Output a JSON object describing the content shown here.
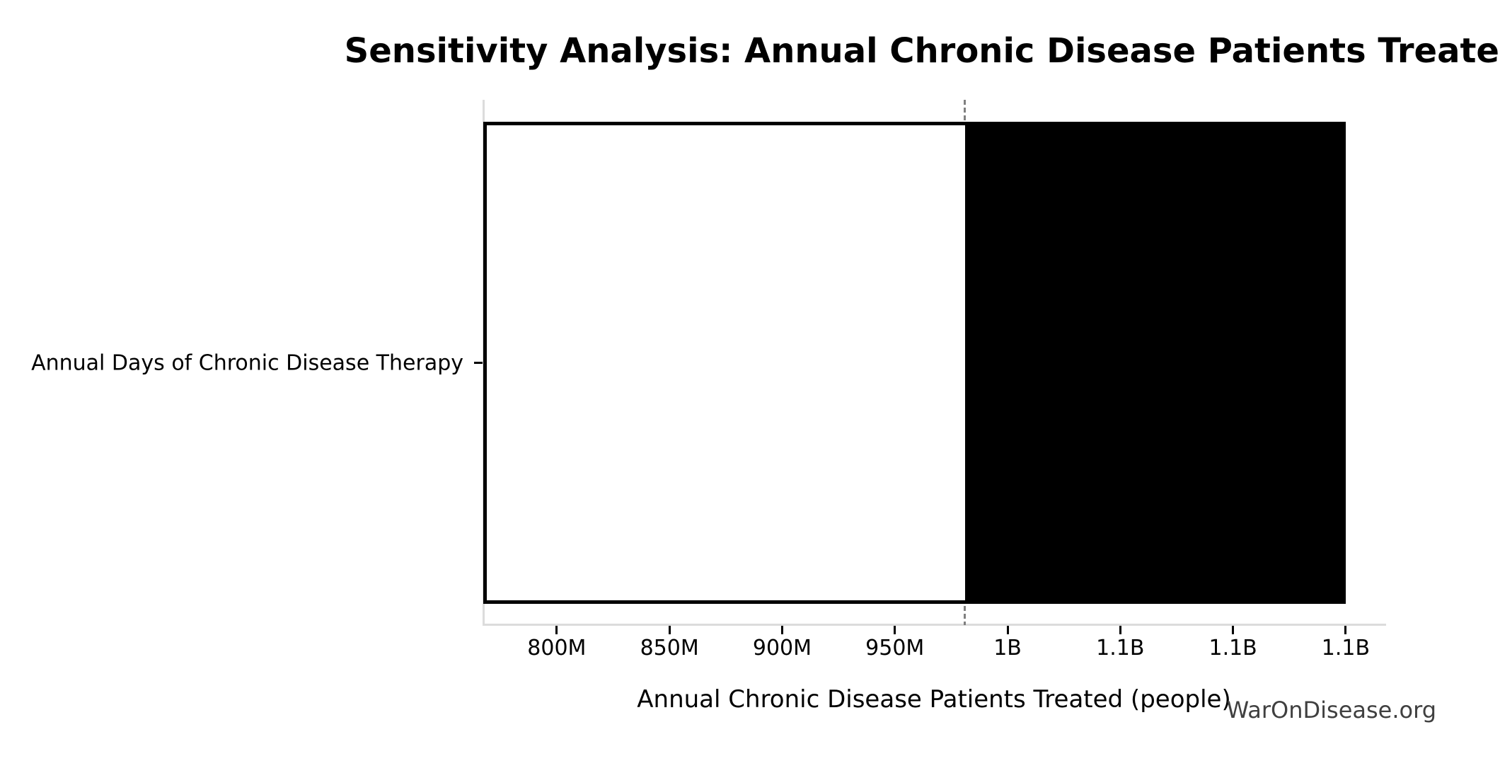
{
  "watermark": "WarOnDisease.org",
  "chart_data": {
    "type": "bar",
    "subtype": "tornado-sensitivity",
    "orientation": "horizontal",
    "title": "Sensitivity Analysis: Annual Chronic Disease Patients Treated",
    "xlabel": "Annual Chronic Disease Patients Treated (people)",
    "ylabel": "",
    "categories": [
      "Annual Days of Chronic Disease Therapy"
    ],
    "baseline_value": 981000000,
    "bars": [
      {
        "category": "Annual Days of Chronic Disease Therapy",
        "low": 767400000,
        "base": 981000000,
        "high": 1150000000,
        "low_segment_color": "#ffffff",
        "high_segment_color": "#000000"
      }
    ],
    "xlim": [
      767400000,
      1167600000
    ],
    "x_ticks": [
      {
        "value": 800000000,
        "label": "800M"
      },
      {
        "value": 850000000,
        "label": "850M"
      },
      {
        "value": 900000000,
        "label": "900M"
      },
      {
        "value": 950000000,
        "label": "950M"
      },
      {
        "value": 1000000000,
        "label": "1B"
      },
      {
        "value": 1050000000,
        "label": "1.1B"
      },
      {
        "value": 1100000000,
        "label": "1.1B"
      },
      {
        "value": 1150000000,
        "label": "1.1B"
      }
    ],
    "grid": false,
    "legend": false,
    "colors": {
      "background": "#ffffff",
      "text": "#000000",
      "axis_spine": "#dcdcdc",
      "tick_mark": "#000000",
      "baseline_line": "#808080",
      "bar_edge": "#000000",
      "bar_low_fill": "#ffffff",
      "bar_high_fill": "#000000",
      "watermark_text": "#404040"
    }
  }
}
